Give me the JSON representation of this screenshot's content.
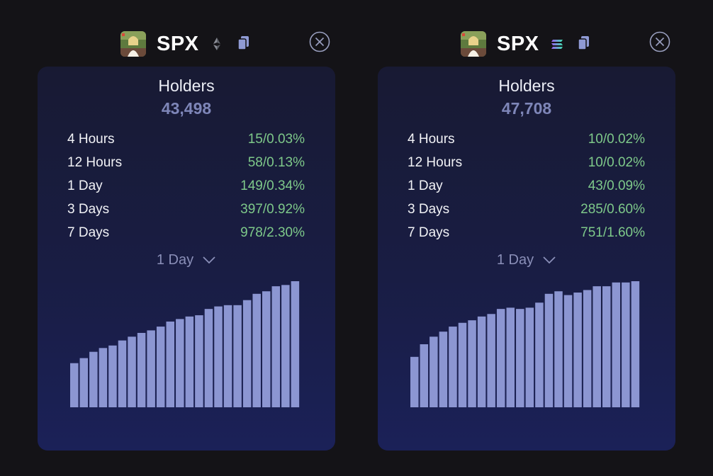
{
  "panels": [
    {
      "ticker": "SPX",
      "chain_icon": "ethereum-icon",
      "holders_label": "Holders",
      "holders_value": "43,498",
      "stats": [
        {
          "label": "4 Hours",
          "count": "15",
          "pct": "0.03%"
        },
        {
          "label": "12 Hours",
          "count": "58",
          "pct": "0.13%"
        },
        {
          "label": "1 Day",
          "count": "149",
          "pct": "0.34%"
        },
        {
          "label": "3 Days",
          "count": "397",
          "pct": "0.92%"
        },
        {
          "label": "7 Days",
          "count": "978",
          "pct": "2.30%"
        }
      ],
      "period": "1 Day",
      "chart_data": {
        "type": "bar",
        "bar_color": "#8c96d2",
        "ylim": [
          0,
          100
        ],
        "values": [
          35,
          39,
          44,
          47,
          49,
          53,
          56,
          59,
          61,
          64,
          68,
          70,
          72,
          73,
          78,
          80,
          81,
          81,
          85,
          90,
          92,
          96,
          97,
          100
        ]
      }
    },
    {
      "ticker": "SPX",
      "chain_icon": "solana-icon",
      "holders_label": "Holders",
      "holders_value": "47,708",
      "stats": [
        {
          "label": "4 Hours",
          "count": "10",
          "pct": "0.02%"
        },
        {
          "label": "12 Hours",
          "count": "10",
          "pct": "0.02%"
        },
        {
          "label": "1 Day",
          "count": "43",
          "pct": "0.09%"
        },
        {
          "label": "3 Days",
          "count": "285",
          "pct": "0.60%"
        },
        {
          "label": "7 Days",
          "count": "751",
          "pct": "1.60%"
        }
      ],
      "period": "1 Day",
      "chart_data": {
        "type": "bar",
        "bar_color": "#8c96d2",
        "ylim": [
          0,
          100
        ],
        "values": [
          40,
          50,
          56,
          60,
          64,
          67,
          69,
          72,
          74,
          78,
          79,
          78,
          79,
          83,
          90,
          92,
          89,
          91,
          93,
          96,
          96,
          99,
          99,
          100
        ]
      }
    }
  ]
}
